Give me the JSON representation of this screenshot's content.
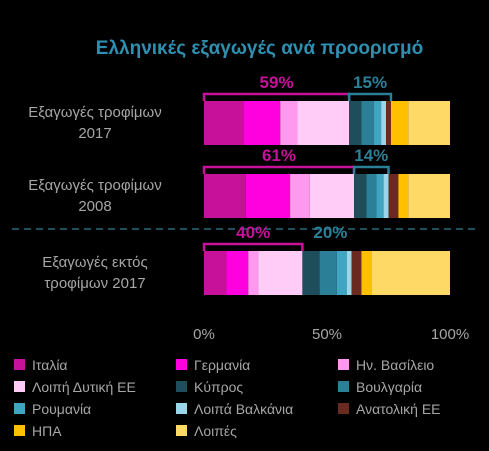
{
  "title": "Ελληνικές εξαγωγές ανά προορισμό",
  "chart_data": {
    "type": "bar",
    "orientation": "horizontal",
    "stacked": true,
    "categories": [
      "Εξαγωγές τροφίμων 2017",
      "Εξαγωγές τροφίμων 2008",
      "Εξαγωγές εκτός τροφίμων 2017"
    ],
    "category_lines": [
      [
        "Εξαγωγές τροφίμων",
        "2017"
      ],
      [
        "Εξαγωγές τροφίμων",
        "2008"
      ],
      [
        "Εξαγωγές εκτός",
        "τροφίμων 2017"
      ]
    ],
    "xlim": [
      0,
      100
    ],
    "x_ticks": [
      "0%",
      "50%",
      "100%"
    ],
    "series": [
      {
        "name": "Ιταλία",
        "color": "#c8119a",
        "values": [
          16,
          17,
          9
        ]
      },
      {
        "name": "Γερμανία",
        "color": "#ff00de",
        "values": [
          15,
          18,
          9
        ]
      },
      {
        "name": "Ην. Βασίλειο",
        "color": "#ff99f0",
        "values": [
          7,
          8,
          4
        ]
      },
      {
        "name": "Λοιπή Δυτική ΕΕ",
        "color": "#ffccf7",
        "values": [
          21,
          18,
          18
        ]
      },
      {
        "name": "Κύπρος",
        "color": "#1e4e5c",
        "values": [
          5,
          5,
          7
        ]
      },
      {
        "name": "Βουλγαρία",
        "color": "#2b7f97",
        "values": [
          5,
          4,
          7
        ]
      },
      {
        "name": "Ρουμανία",
        "color": "#3fa5c0",
        "values": [
          3,
          3,
          4
        ]
      },
      {
        "name": "Λοιπά Βαλκάνια",
        "color": "#9ad6ea",
        "values": [
          2,
          2,
          2
        ]
      },
      {
        "name": "Ανατολική ΕΕ",
        "color": "#6b2a1f",
        "values": [
          2,
          4,
          4
        ]
      },
      {
        "name": "ΗΠΑ",
        "color": "#ffc000",
        "values": [
          7,
          4,
          4
        ]
      },
      {
        "name": "Λοιπές",
        "color": "#ffd966",
        "values": [
          17,
          17,
          32
        ]
      }
    ],
    "annotations": [
      {
        "label": "59%",
        "color": "#c8119a",
        "row": 0,
        "from": 0,
        "to": 59
      },
      {
        "label": "15%",
        "color": "#2b7f97",
        "row": 0,
        "from": 59,
        "to": 76
      },
      {
        "label": "61%",
        "color": "#c8119a",
        "row": 1,
        "from": 0,
        "to": 61
      },
      {
        "label": "14%",
        "color": "#2b7f97",
        "row": 1,
        "from": 61,
        "to": 75
      },
      {
        "label": "40%",
        "color": "#c8119a",
        "row": 2,
        "from": 0,
        "to": 40
      },
      {
        "label": "20%",
        "color": "#2b7f97",
        "row": 2,
        "from": 40,
        "to": null
      }
    ],
    "legend_position": "bottom",
    "grid": false
  }
}
